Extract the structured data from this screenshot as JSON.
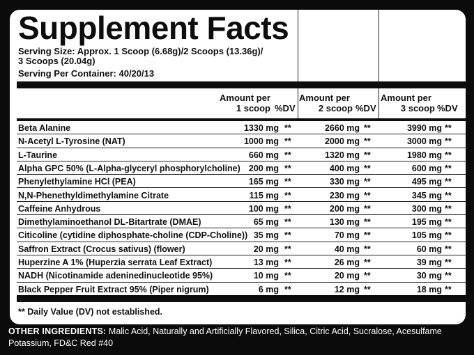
{
  "title": "Supplement Facts",
  "serving_size_line1": "Serving Size: Approx. 1 Scoop (6.68g)/2 Scoops (13.36g)/",
  "serving_size_line2": "3 Scoops (20.04g)",
  "servings_per_container": "Serving Per Container: 40/20/13",
  "columns": [
    {
      "amount_line1": "Amount per",
      "amount_line2": "1 scoop",
      "dv": "%DV"
    },
    {
      "amount_line1": "Amount per",
      "amount_line2": "2 scoop",
      "dv": "%DV"
    },
    {
      "amount_line1": "Amount per",
      "amount_line2": "3 scoop",
      "dv": "%DV"
    }
  ],
  "ingredients": [
    {
      "name": "Beta Alanine",
      "a1": "1330 mg",
      "d1": "**",
      "a2": "2660 mg",
      "d2": "**",
      "a3": "3990 mg",
      "d3": "**"
    },
    {
      "name": "N-Acetyl L-Tyrosine (NAT)",
      "a1": "1000 mg",
      "d1": "**",
      "a2": "2000 mg",
      "d2": "**",
      "a3": "3000 mg",
      "d3": "**"
    },
    {
      "name": "L-Taurine",
      "a1": "660 mg",
      "d1": "**",
      "a2": "1320 mg",
      "d2": "**",
      "a3": "1980 mg",
      "d3": "**"
    },
    {
      "name": "Alpha GPC 50% (L-Alpha-glyceryl phosphorylcholine)",
      "a1": "200 mg",
      "d1": "**",
      "a2": "400 mg",
      "d2": "**",
      "a3": "600 mg",
      "d3": "**"
    },
    {
      "name": "Phenylethylamine HCl (PEA)",
      "a1": "165 mg",
      "d1": "**",
      "a2": "330 mg",
      "d2": "**",
      "a3": "495 mg",
      "d3": "**"
    },
    {
      "name": "N,N-Phenethyldimethylamine Citrate",
      "a1": "115 mg",
      "d1": "**",
      "a2": "230 mg",
      "d2": "**",
      "a3": "345 mg",
      "d3": "**"
    },
    {
      "name": "Caffeine Anhydrous",
      "a1": "100 mg",
      "d1": "**",
      "a2": "200 mg",
      "d2": "**",
      "a3": "300 mg",
      "d3": "**"
    },
    {
      "name": "Dimethylaminoethanol DL-Bitartrate (DMAE)",
      "a1": "65 mg",
      "d1": "**",
      "a2": "130 mg",
      "d2": "**",
      "a3": "195 mg",
      "d3": "**"
    },
    {
      "name": "Citicoline (cytidine diphosphate-choline (CDP-Choline))",
      "a1": "35 mg",
      "d1": "**",
      "a2": "70 mg",
      "d2": "**",
      "a3": "105 mg",
      "d3": "**"
    },
    {
      "name": "Saffron Extract (Crocus sativus) (flower)",
      "a1": "20 mg",
      "d1": "**",
      "a2": "40 mg",
      "d2": "**",
      "a3": "60 mg",
      "d3": "**"
    },
    {
      "name": "Huperzine A 1% (Huperzia serrata Leaf Extract)",
      "a1": "13 mg",
      "d1": "**",
      "a2": "26 mg",
      "d2": "**",
      "a3": "39 mg",
      "d3": "**"
    },
    {
      "name": "NADH (Nicotinamide adeninedinucleotide 95%)",
      "a1": "10 mg",
      "d1": "**",
      "a2": "20 mg",
      "d2": "**",
      "a3": "30 mg",
      "d3": "**"
    },
    {
      "name": "Black Pepper Fruit Extract 95% (Piper nigrum)",
      "a1": "6 mg",
      "d1": "**",
      "a2": "12 mg",
      "d2": "**",
      "a3": "18 mg",
      "d3": "**"
    }
  ],
  "footnote": "** Daily Value (DV) not established.",
  "other_ingredients_label": "OTHER INGREDIENTS:",
  "other_ingredients_text": "Malic Acid, Naturally and Artificially Flavored, Silica, Citric Acid, Sucralose, Acesulfame Potassium, FD&C Red #40",
  "colors": {
    "background": "#0b0b0b",
    "panel": "#ffffff",
    "text": "#111111"
  }
}
